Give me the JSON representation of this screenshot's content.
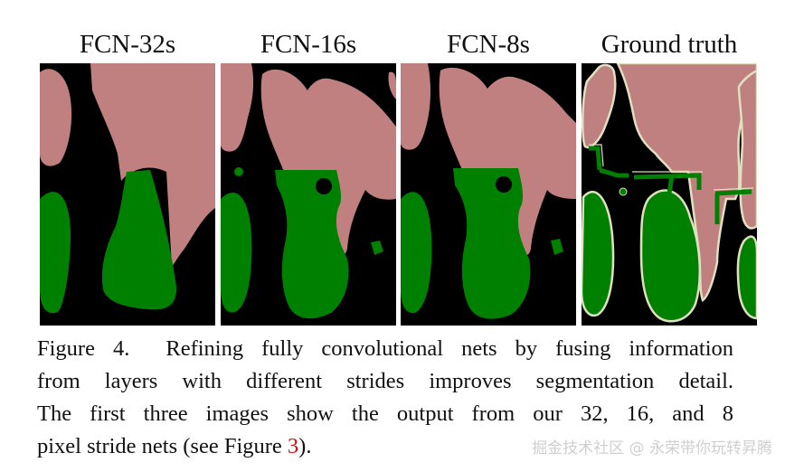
{
  "figure": {
    "panels": [
      {
        "label": "FCN-32s"
      },
      {
        "label": "FCN-16s"
      },
      {
        "label": "FCN-8s"
      },
      {
        "label": "Ground truth"
      }
    ],
    "colors": {
      "background_class": "#000000",
      "person_class": "#c08080",
      "bicycle_class": "#008000",
      "void_boundary": "#e0e0c0"
    }
  },
  "caption": {
    "figure_number": "Figure 4.",
    "line1_rest": "Refining fully convolutional nets by fusing information",
    "line2": "from layers with different strides improves segmentation detail.",
    "line3": "The first three images show the output from our 32, 16, and 8",
    "line4_before_ref": "pixel stride nets (see Figure ",
    "ref_number": "3",
    "line4_after_ref": ")."
  },
  "watermark": "掘金技术社区 @ 永荣带你玩转昇腾"
}
